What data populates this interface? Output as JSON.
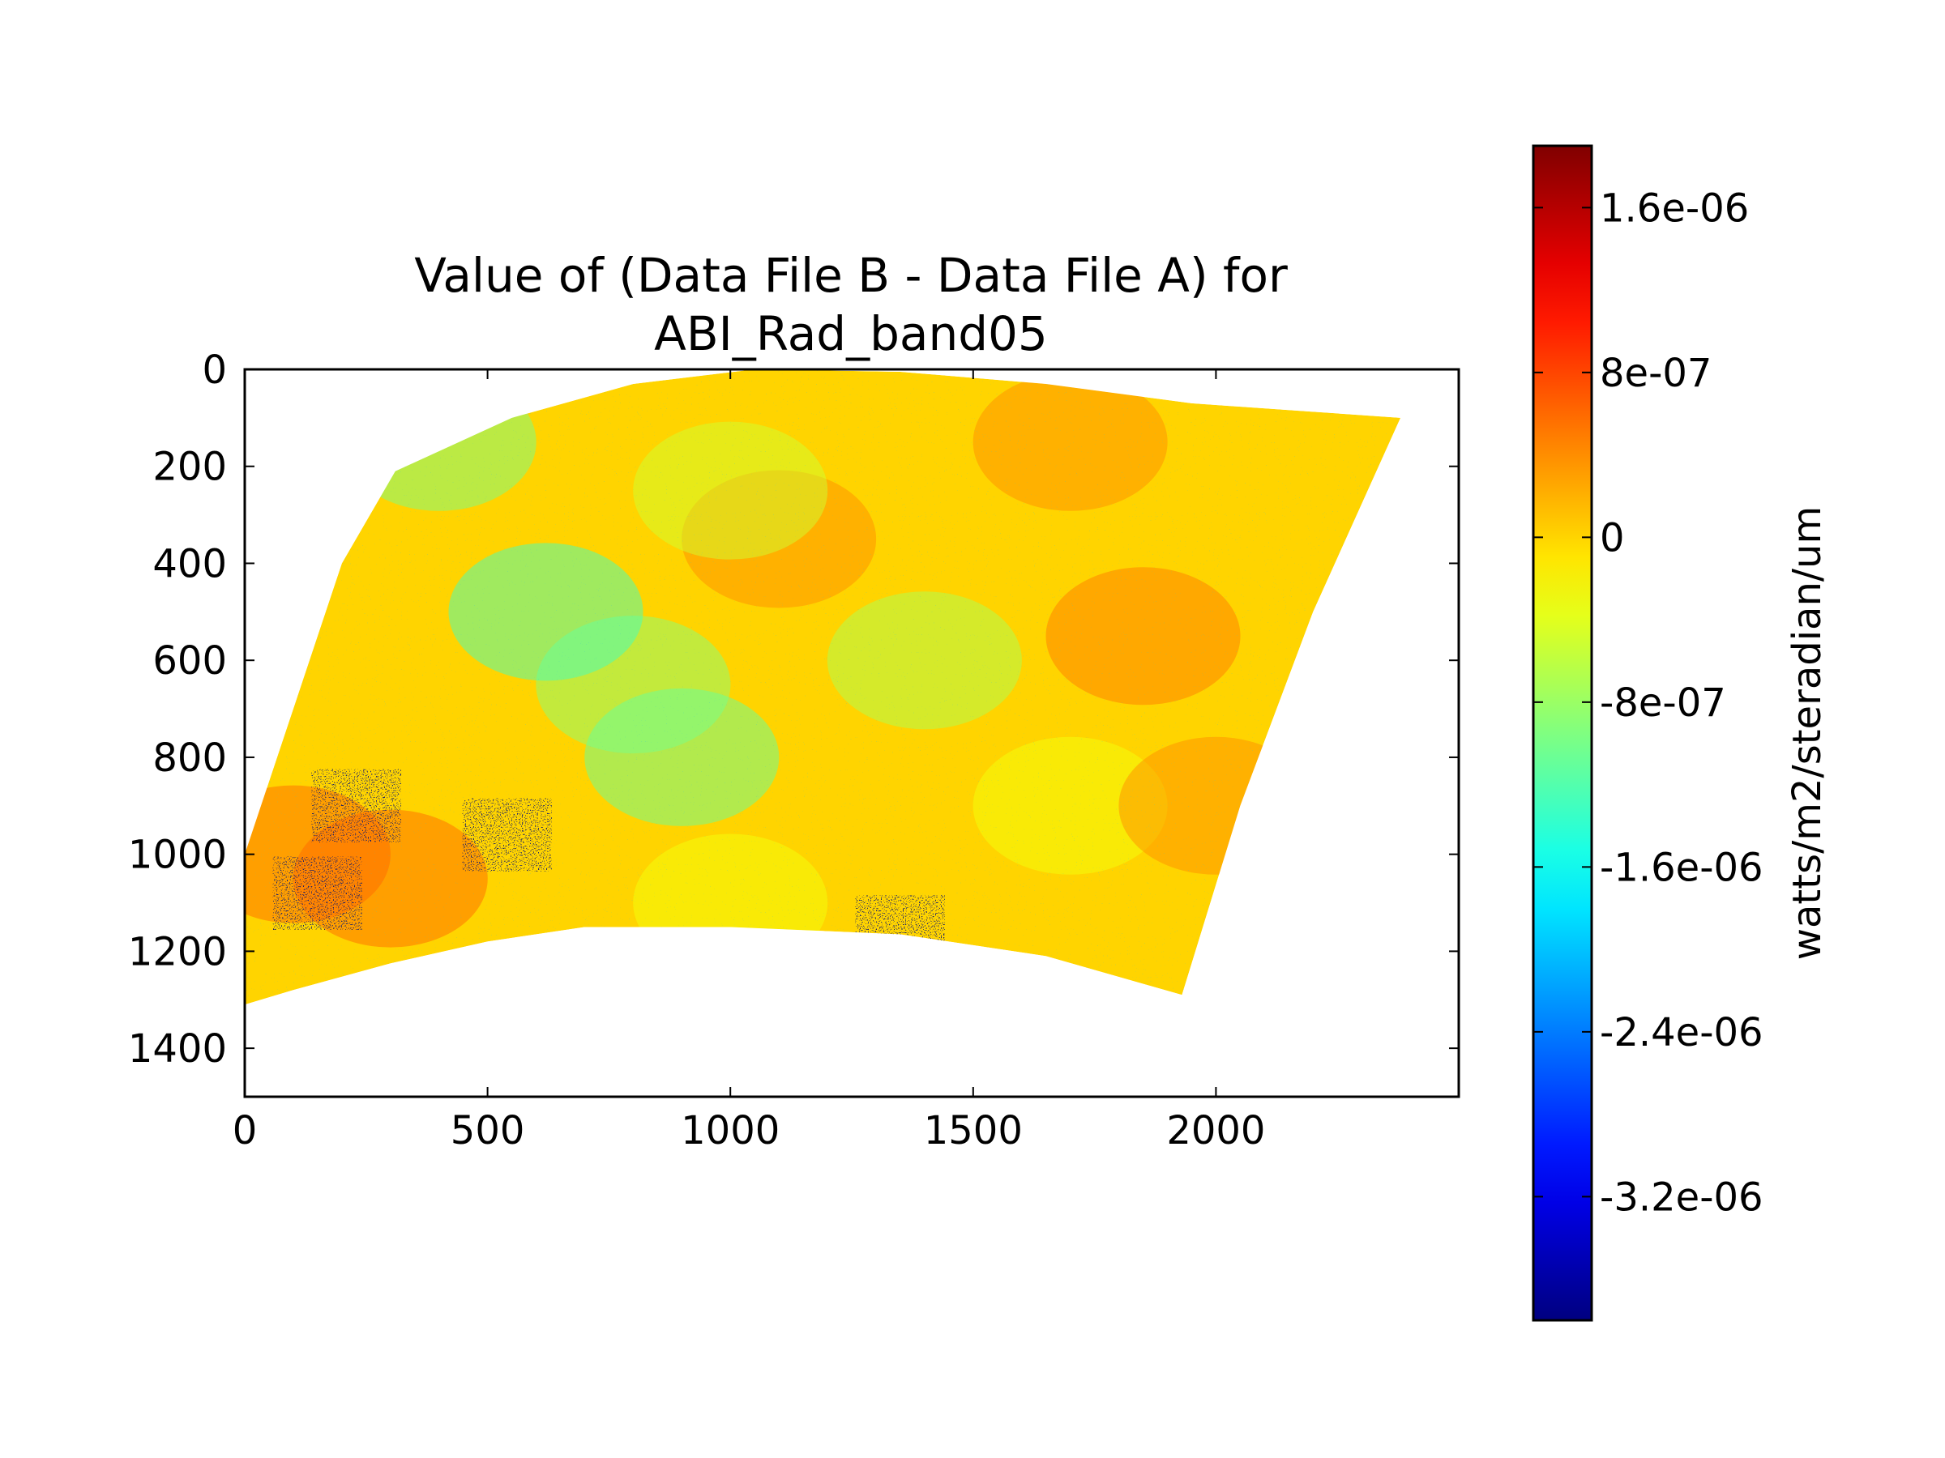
{
  "chart_data": {
    "type": "heatmap",
    "title_lines": [
      "Value of (Data File B - Data File A) for",
      "ABI_Rad_band05"
    ],
    "xlim": [
      0,
      2500
    ],
    "ylim": [
      1500,
      0
    ],
    "x_ticks": [
      0,
      500,
      1000,
      1500,
      2000
    ],
    "y_ticks": [
      0,
      200,
      400,
      600,
      800,
      1000,
      1200,
      1400
    ],
    "x_tick_labels": [
      "0",
      "500",
      "1000",
      "1500",
      "2000"
    ],
    "y_tick_labels": [
      "0",
      "200",
      "400",
      "600",
      "800",
      "1000",
      "1200",
      "1400"
    ],
    "grid": false,
    "colormap": "jet",
    "colorbar": {
      "label": "watts/m2/steradian/um",
      "range": [
        -3.8e-06,
        1.9e-06
      ],
      "ticks": [
        1.6e-06,
        8e-07,
        0,
        -8e-07,
        -1.6e-06,
        -2.4e-06,
        -3.2e-06
      ],
      "tick_labels": [
        "1.6e-06",
        "8e-07",
        "0",
        "-8e-07",
        "-1.6e-06",
        "-2.4e-06",
        "-3.2e-06"
      ],
      "placement": "right"
    },
    "data_region_outline": [
      [
        0,
        1310
      ],
      [
        0,
        1000
      ],
      [
        100,
        700
      ],
      [
        200,
        400
      ],
      [
        310,
        210
      ],
      [
        550,
        100
      ],
      [
        800,
        30
      ],
      [
        1050,
        0
      ],
      [
        1350,
        5
      ],
      [
        1650,
        30
      ],
      [
        1950,
        70
      ],
      [
        2380,
        100
      ],
      [
        2200,
        500
      ],
      [
        2050,
        900
      ],
      [
        1930,
        1290
      ],
      [
        1650,
        1210
      ],
      [
        1350,
        1165
      ],
      [
        1000,
        1150
      ],
      [
        700,
        1150
      ],
      [
        500,
        1180
      ],
      [
        300,
        1225
      ],
      [
        100,
        1280
      ]
    ],
    "background_value": 0,
    "dominant_value_range": [
      -4e-07,
      4e-07
    ],
    "features": [
      {
        "x": 1100,
        "y": 350,
        "value": 4e-07
      },
      {
        "x": 1850,
        "y": 550,
        "value": 5e-07
      },
      {
        "x": 1700,
        "y": 150,
        "value": 4e-07
      },
      {
        "x": 800,
        "y": 650,
        "value": -9e-07
      },
      {
        "x": 1400,
        "y": 600,
        "value": -7e-07
      },
      {
        "x": 620,
        "y": 500,
        "value": -1.3e-06
      },
      {
        "x": 900,
        "y": 800,
        "value": -1.1e-06
      },
      {
        "x": 400,
        "y": 150,
        "value": -1e-06
      },
      {
        "x": 1000,
        "y": 250,
        "value": -5e-07
      },
      {
        "x": 150,
        "y": 1080,
        "value": -3.5e-06
      },
      {
        "x": 230,
        "y": 900,
        "value": -3.6e-06
      },
      {
        "x": 540,
        "y": 960,
        "value": -3.6e-06
      },
      {
        "x": 1350,
        "y": 1160,
        "value": -3.6e-06
      },
      {
        "x": 300,
        "y": 1050,
        "value": 6e-07
      },
      {
        "x": 100,
        "y": 1000,
        "value": 6e-07
      },
      {
        "x": 1000,
        "y": 1100,
        "value": -3e-07
      },
      {
        "x": 1700,
        "y": 900,
        "value": -3e-07
      },
      {
        "x": 2000,
        "y": 900,
        "value": 4e-07
      }
    ]
  }
}
